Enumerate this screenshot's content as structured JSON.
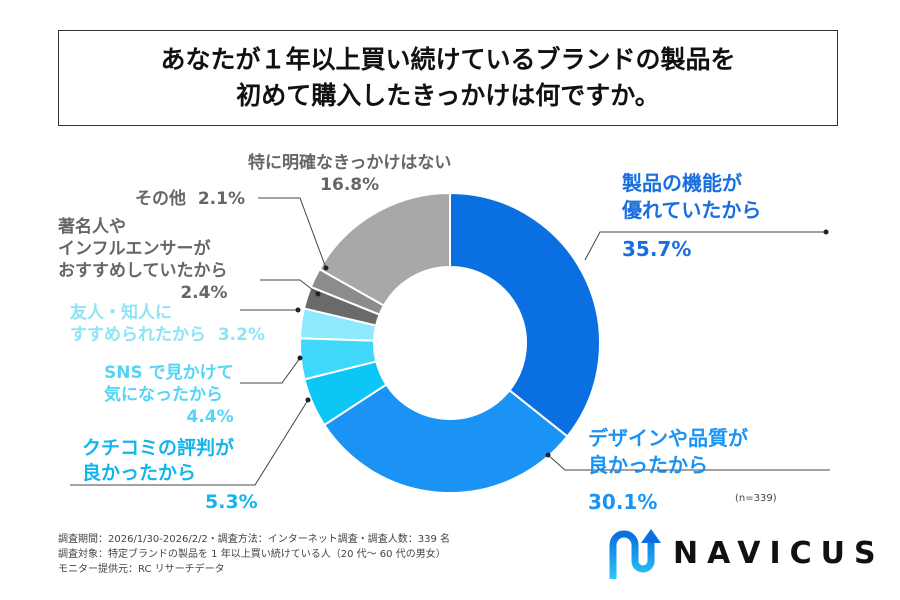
{
  "chart_data": {
    "type": "pie",
    "donut": true,
    "title_lines": [
      "あなたが１年以上買い続けているブランドの製品を",
      "初めて購入したきっかけは何ですか。"
    ],
    "slices": [
      {
        "label": "製品の機能が優れていたから",
        "value": 35.7,
        "display": "35.7%",
        "color": "#0a6fe0"
      },
      {
        "label": "デザインや品質が良かったから",
        "value": 30.1,
        "display": "30.1%",
        "color": "#1a93f5"
      },
      {
        "label": "クチコミの評判が良かったから",
        "value": 5.3,
        "display": "5.3%",
        "color": "#0cc6f5"
      },
      {
        "label": "SNSで見かけて気になったから",
        "value": 4.4,
        "display": "4.4%",
        "color": "#3fd8fb"
      },
      {
        "label": "友人・知人にすすめられたから",
        "value": 3.2,
        "display": "3.2%",
        "color": "#8de9fc"
      },
      {
        "label": "著名人やインフルエンサーがおすすめしていたから",
        "value": 2.4,
        "display": "2.4%",
        "color": "#6a6a6a"
      },
      {
        "label": "その他",
        "value": 2.1,
        "display": "2.1%",
        "color": "#8c8c8c"
      },
      {
        "label": "特に明確なきっかけはない",
        "value": 16.8,
        "display": "16.8%",
        "color": "#a8a8a8"
      }
    ],
    "label_lines": {
      "s0": [
        "製品の機能が",
        "優れていたから"
      ],
      "s1": [
        "デザインや品質が",
        "良かったから"
      ],
      "s2": [
        "クチコミの評判が",
        "良かったから"
      ],
      "s3": [
        "SNS で見かけて",
        "気になったから"
      ],
      "s4": [
        "友人・知人に",
        "すすめられたから"
      ],
      "s5": [
        "著名人や",
        "インフルエンサーが",
        "おすすめしていたから"
      ],
      "s6": "その他",
      "s7": "特に明確なきっかけはない"
    },
    "sample": "(n=339)"
  },
  "notes": [
    "調査期間：2026/1/30-2026/2/2・調査方法：インターネット調査・調査人数：339 名",
    "調査対象：特定ブランドの製品を 1 年以上買い続けている人（20 代～ 60 代の男女）",
    "モニター提供元：RC リサーチデータ"
  ],
  "logo": {
    "text": "NAVICUS",
    "icon": "navicus-arrow-logo"
  }
}
